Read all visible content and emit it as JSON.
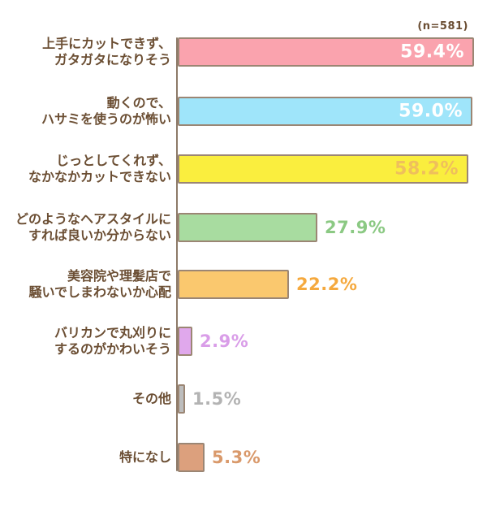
{
  "chart_data": {
    "type": "bar",
    "orientation": "horizontal",
    "title": "",
    "n_label": "(n=581)",
    "unit": "%",
    "xlim": [
      0,
      62
    ],
    "grid": false,
    "legend": "none",
    "categories": [
      "上手にカットできず、ガタガタになりそう",
      "動くので、ハサミを使うのが怖い",
      "じっとしてくれず、なかなかカットできない",
      "どのようなヘアスタイルにすれば良いか分からない",
      "美容院や理髪店で騒いでしまわないか心配",
      "バリカンで丸刈りにするのがかわいそう",
      "その他",
      "特になし"
    ],
    "values": [
      59.4,
      59.0,
      58.2,
      27.9,
      22.2,
      2.9,
      1.5,
      5.3
    ],
    "items": [
      {
        "label": "上手にカットできず、\nガタガタになりそう",
        "value": 59.4,
        "value_text": "59.4%",
        "bar_color": "#faa3ae",
        "value_color": "#ffffff",
        "value_position": "inside"
      },
      {
        "label": "動くので、\nハサミを使うのが怖い",
        "value": 59.0,
        "value_text": "59.0%",
        "bar_color": "#9fe5fa",
        "value_color": "#ffffff",
        "value_position": "inside"
      },
      {
        "label": "じっとしてくれず、\nなかなかカットできない",
        "value": 58.2,
        "value_text": "58.2%",
        "bar_color": "#faee3e",
        "value_color": "#efbf5c",
        "value_position": "inside"
      },
      {
        "label": "どのようなヘアスタイルに\nすれば良いか分からない",
        "value": 27.9,
        "value_text": "27.9%",
        "bar_color": "#a8dca0",
        "value_color": "#8bc983",
        "value_position": "outside"
      },
      {
        "label": "美容院や理髪店で\n騒いでしまわないか心配",
        "value": 22.2,
        "value_text": "22.2%",
        "bar_color": "#fac86e",
        "value_color": "#f5a93e",
        "value_position": "outside"
      },
      {
        "label": "バリカンで丸刈りに\nするのがかわいそう",
        "value": 2.9,
        "value_text": "2.9%",
        "bar_color": "#e0a8ec",
        "value_color": "#d99de8",
        "value_position": "outside"
      },
      {
        "label": "その他",
        "value": 1.5,
        "value_text": "1.5%",
        "bar_color": "#bdbdbd",
        "value_color": "#b3b3b3",
        "value_position": "outside"
      },
      {
        "label": "特になし",
        "value": 5.3,
        "value_text": "5.3%",
        "bar_color": "#dca07d",
        "value_color": "#d9996b",
        "value_position": "outside"
      }
    ],
    "colors": {
      "label_text": "#6b4e33",
      "axis_line": "#8d7a68",
      "bar_border": "#9b8674",
      "background": "#ffffff"
    }
  }
}
